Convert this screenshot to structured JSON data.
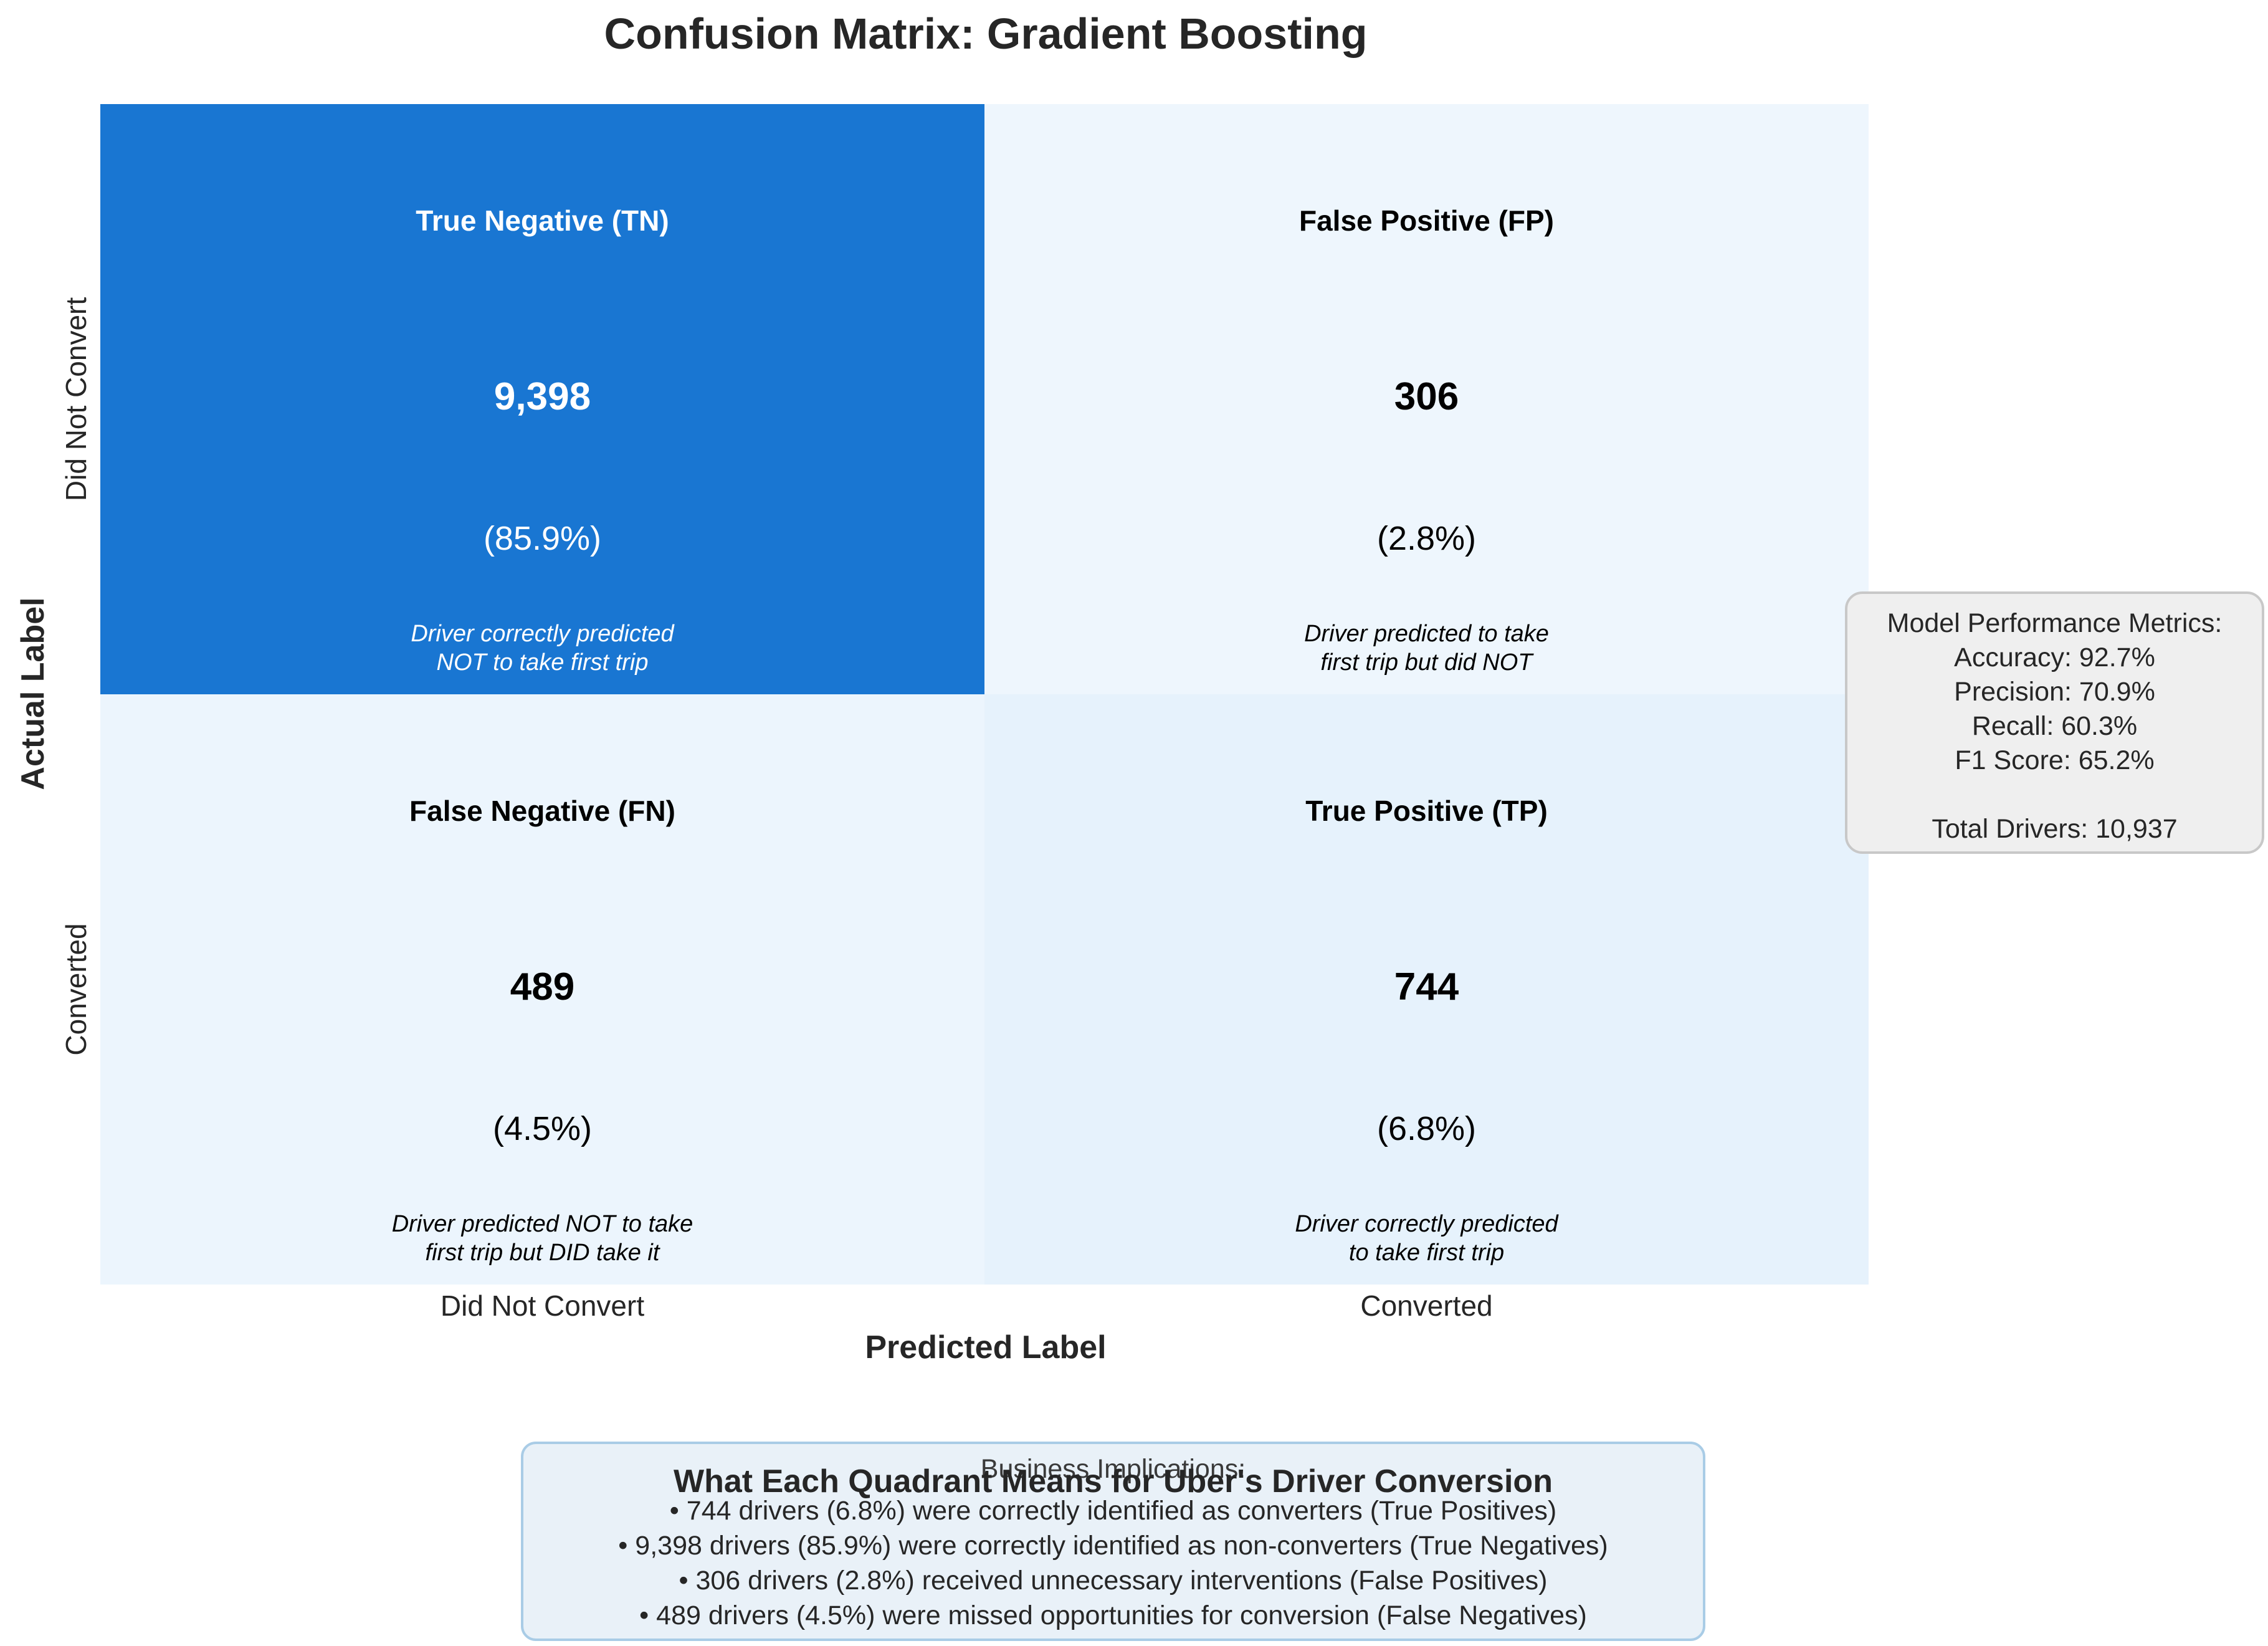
{
  "chart_data": {
    "type": "heatmap",
    "title": "Confusion Matrix: Gradient Boosting",
    "xlabel": "Predicted Label",
    "ylabel": "Actual Label",
    "x_categories": [
      "Did Not Convert",
      "Converted"
    ],
    "y_categories": [
      "Did Not Convert",
      "Converted"
    ],
    "cells": [
      {
        "row": 0,
        "col": 0,
        "label": "True Negative (TN)",
        "count": "9,398",
        "value": 9398,
        "percent": "(85.9%)",
        "description": [
          "Driver correctly predicted",
          "NOT to take first trip"
        ],
        "color": "#1976d2",
        "text_color": "#ffffff"
      },
      {
        "row": 0,
        "col": 1,
        "label": "False Positive (FP)",
        "count": "306",
        "value": 306,
        "percent": "(2.8%)",
        "description": [
          "Driver predicted to take",
          "first trip but did NOT"
        ],
        "color": "#eef6fd",
        "text_color": "#000000"
      },
      {
        "row": 1,
        "col": 0,
        "label": "False Negative (FN)",
        "count": "489",
        "value": 489,
        "percent": "(4.5%)",
        "description": [
          "Driver predicted NOT to take",
          "first trip but DID take it"
        ],
        "color": "#ecf5fd",
        "text_color": "#000000"
      },
      {
        "row": 1,
        "col": 1,
        "label": "True Positive (TP)",
        "count": "744",
        "value": 744,
        "percent": "(6.8%)",
        "description": [
          "Driver correctly predicted",
          "to take first trip"
        ],
        "color": "#e6f2fc",
        "text_color": "#000000"
      }
    ]
  },
  "metrics_box": {
    "title": "Model Performance Metrics:",
    "lines": [
      "Accuracy: 92.7%",
      "Precision: 70.9%",
      "Recall: 60.3%",
      "F1 Score: 65.2%"
    ],
    "total": "Total Drivers: 10,937"
  },
  "implications_box": {
    "overlay_title": "Business Implications:",
    "heading": "What Each Quadrant Means for Uber's Driver Conversion",
    "lines": [
      "• 744 drivers (6.8%) were correctly identified as converters (True Positives)",
      "• 9,398 drivers (85.9%) were correctly identified as non-converters (True Negatives)",
      "• 306 drivers (2.8%) received unnecessary interventions (False Positives)",
      "• 489 drivers (4.5%) were missed opportunities for conversion (False Negatives)"
    ]
  }
}
